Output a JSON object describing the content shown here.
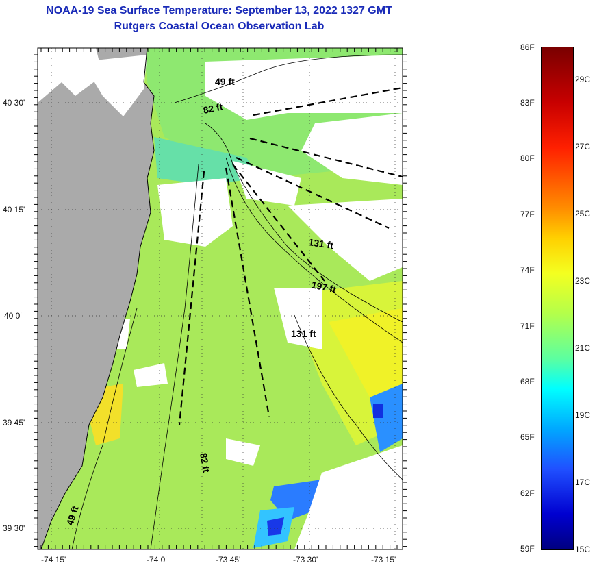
{
  "title": {
    "line1": "NOAA-19 Sea Surface Temperature:  September 13, 2022 1327 GMT",
    "line2": "Rutgers Coastal Ocean Observation Lab"
  },
  "map": {
    "lat_ticks": [
      "40 30'",
      "40 15'",
      "40 0'",
      "39 45'",
      "39 30'"
    ],
    "lon_ticks": [
      "-74 15'",
      "-74 0'",
      "-73 45'",
      "-73 30'",
      "-73 15'"
    ],
    "depth_labels": [
      "49 ft",
      "82 ft",
      "131 ft",
      "197 ft",
      "131 ft",
      "82 ft",
      "49 ft"
    ]
  },
  "colorbar": {
    "fahrenheit": [
      "86F",
      "83F",
      "80F",
      "77F",
      "74F",
      "71F",
      "68F",
      "65F",
      "62F",
      "59F"
    ],
    "celsius": [
      "29C",
      "27C",
      "25C",
      "23C",
      "21C",
      "19C",
      "17C",
      "15C"
    ]
  },
  "colors": {
    "land": "#aaaaaa",
    "cloud": "#ffffff",
    "title": "#1a2bb8"
  }
}
